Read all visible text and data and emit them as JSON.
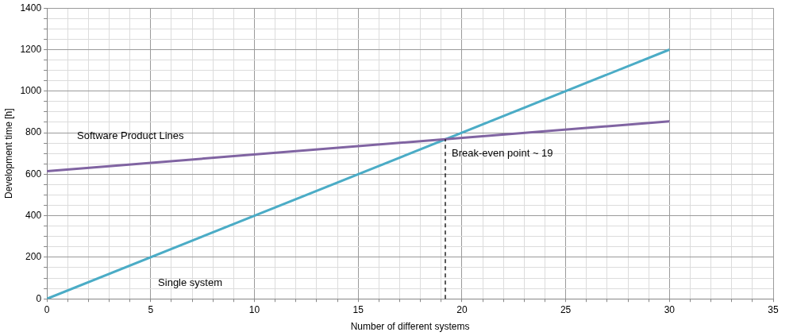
{
  "chart_data": {
    "type": "line",
    "xlabel": "Number of different systems",
    "ylabel": "Development time [h]",
    "xlim": [
      0,
      35
    ],
    "ylim": [
      0,
      1400
    ],
    "xticks": [
      0,
      {
        "value": 1,
        "label": null
      },
      {
        "value": 2,
        "label": null
      },
      {
        "value": 3,
        "label": null
      },
      {
        "value": 4,
        "label": null
      },
      5,
      {
        "value": 6,
        "label": null
      },
      {
        "value": 7,
        "label": null
      },
      {
        "value": 8,
        "label": null
      },
      {
        "value": 9,
        "label": null
      },
      10,
      {
        "value": 11,
        "label": null
      },
      {
        "value": 12,
        "label": null
      },
      {
        "value": 13,
        "label": null
      },
      {
        "value": 14,
        "label": null
      },
      15,
      {
        "value": 16,
        "label": null
      },
      {
        "value": 17,
        "label": null
      },
      {
        "value": 18,
        "label": null
      },
      {
        "value": 19,
        "label": null
      },
      20,
      {
        "value": 21,
        "label": null
      },
      {
        "value": 22,
        "label": null
      },
      {
        "value": 23,
        "label": null
      },
      {
        "value": 24,
        "label": null
      },
      25,
      {
        "value": 26,
        "label": null
      },
      {
        "value": 27,
        "label": null
      },
      {
        "value": 28,
        "label": null
      },
      {
        "value": 29,
        "label": null
      },
      30,
      {
        "value": 31,
        "label": null
      },
      {
        "value": 32,
        "label": null
      },
      {
        "value": 33,
        "label": null
      },
      {
        "value": 34,
        "label": null
      },
      35
    ],
    "yticks": [
      0,
      {
        "value": 50,
        "label": null
      },
      {
        "value": 100,
        "label": null
      },
      {
        "value": 150,
        "label": null
      },
      200,
      {
        "value": 250,
        "label": null
      },
      {
        "value": 300,
        "label": null
      },
      {
        "value": 350,
        "label": null
      },
      400,
      {
        "value": 450,
        "label": null
      },
      {
        "value": 500,
        "label": null
      },
      {
        "value": 550,
        "label": null
      },
      600,
      {
        "value": 650,
        "label": null
      },
      {
        "value": 700,
        "label": null
      },
      {
        "value": 750,
        "label": null
      },
      800,
      {
        "value": 850,
        "label": null
      },
      {
        "value": 900,
        "label": null
      },
      {
        "value": 950,
        "label": null
      },
      1000,
      {
        "value": 1050,
        "label": null
      },
      {
        "value": 1100,
        "label": null
      },
      {
        "value": 1150,
        "label": null
      },
      1200,
      {
        "value": 1250,
        "label": null
      },
      {
        "value": 1300,
        "label": null
      },
      {
        "value": 1350,
        "label": null
      },
      1400
    ],
    "series": [
      {
        "name": "Software Product Lines",
        "color": "#8064a2",
        "values": [
          615,
          855
        ]
      },
      {
        "name": "Single system",
        "color": "#4bacc6",
        "values": [
          0,
          1200
        ]
      }
    ],
    "x": [
      0,
      30
    ],
    "ref_lines": [
      {
        "axis": "x",
        "value": 19.2,
        "label": "Break-even point ~ 19",
        "color": "#000000",
        "line_style": "dashed"
      }
    ],
    "grid": true,
    "legend": false,
    "marker": "none",
    "line_style": "solid"
  }
}
